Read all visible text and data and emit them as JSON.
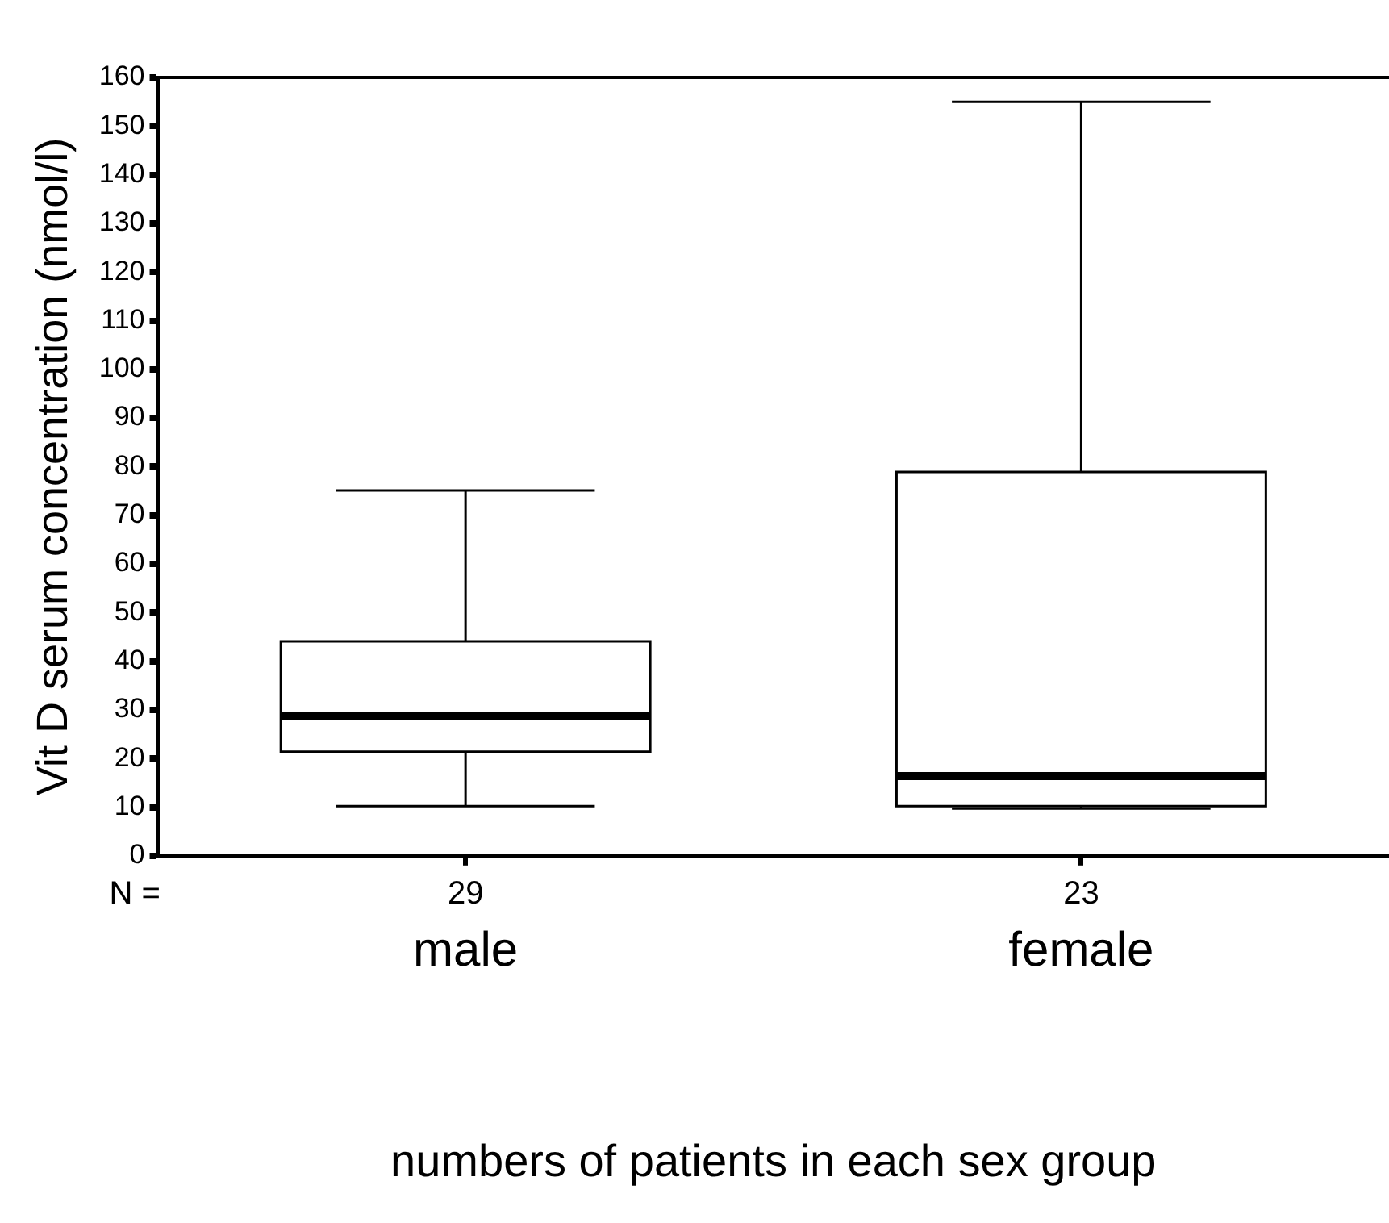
{
  "chart_data": {
    "type": "box",
    "categories": [
      "male",
      "female"
    ],
    "boxes": [
      {
        "low": 10.2,
        "q1": 21.4,
        "median": 28.7,
        "q3": 44.1,
        "high": 75.1
      },
      {
        "low": 9.7,
        "q1": 10.2,
        "median": 16.4,
        "q3": 78.9,
        "high": 155
      }
    ],
    "ylabel": "Vit D serum concentration (nmol/l)",
    "xlabel": "numbers of patients in each sex group",
    "ylim": [
      0,
      160
    ],
    "yticks": [
      0,
      10,
      20,
      30,
      40,
      50,
      60,
      70,
      80,
      90,
      100,
      110,
      120,
      130,
      140,
      150,
      160
    ],
    "annotations": [
      "N =",
      "29",
      "23"
    ],
    "grid": false,
    "legend": false
  }
}
